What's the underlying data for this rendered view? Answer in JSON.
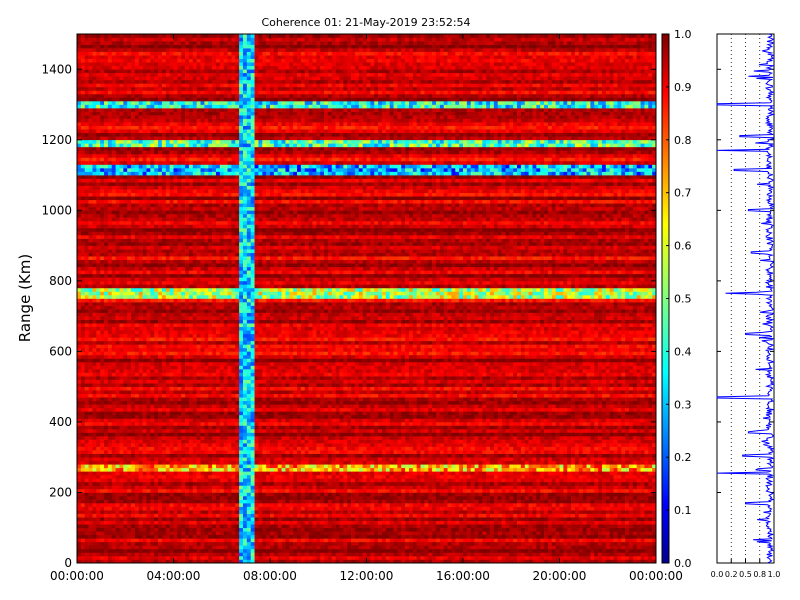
{
  "chart_data": [
    {
      "type": "heatmap",
      "title": "Coherence 01: 21-May-2019 23:52:54",
      "xlabel": "",
      "ylabel": "Range (Km)",
      "x_tick_labels": [
        "00:00:00",
        "04:00:00",
        "08:00:00",
        "12:00:00",
        "16:00:00",
        "20:00:00",
        "00:00:00"
      ],
      "x_tick_hours": [
        0,
        4,
        8,
        12,
        16,
        20,
        24
      ],
      "xlim_hours": [
        0,
        24
      ],
      "y_ticks": [
        0,
        200,
        400,
        600,
        800,
        1000,
        1200,
        1400
      ],
      "ylim": [
        0,
        1500
      ],
      "colorscale": "jet",
      "zlim": [
        0,
        1
      ],
      "colorbar_ticks": [
        "0.0",
        "0.1",
        "0.2",
        "0.3",
        "0.4",
        "0.5",
        "0.6",
        "0.7",
        "0.8",
        "0.9",
        "1.0"
      ],
      "background_coherence": [
        0.85,
        1.0
      ],
      "low_coherence_time_band_hours": [
        6.7,
        7.4
      ],
      "low_coherence_time_band_value": 0.35,
      "low_coherence_range_rows_km": [
        {
          "range": 1300,
          "value": 0.4
        },
        {
          "range": 1190,
          "value": 0.45
        },
        {
          "range": 1115,
          "value": 0.3
        },
        {
          "range": 765,
          "value": 0.55
        },
        {
          "range": 270,
          "value": 0.7
        }
      ]
    },
    {
      "type": "line",
      "title": "",
      "xlabel": "",
      "ylabel": "",
      "x_tick_labels": [
        "0.0",
        "0.2",
        "0.5",
        "0.8",
        "1.0"
      ],
      "x_ticks": [
        0.0,
        0.25,
        0.5,
        0.75,
        1.0
      ],
      "xlim": [
        0,
        1
      ],
      "ylim": [
        0,
        1500
      ],
      "grid": "vertical-dotted",
      "series": [
        {
          "color": "#0000ff",
          "dips": [
            {
              "range": 1380,
              "value": 0.55
            },
            {
              "range": 1300,
              "value": 0.0
            },
            {
              "range": 1210,
              "value": 0.4
            },
            {
              "range": 1170,
              "value": 0.0
            },
            {
              "range": 1115,
              "value": 0.3
            },
            {
              "range": 1000,
              "value": 0.55
            },
            {
              "range": 880,
              "value": 0.6
            },
            {
              "range": 765,
              "value": 0.15
            },
            {
              "range": 650,
              "value": 0.5
            },
            {
              "range": 470,
              "value": 0.0
            },
            {
              "range": 370,
              "value": 0.55
            },
            {
              "range": 305,
              "value": 0.45
            },
            {
              "range": 255,
              "value": 0.0
            },
            {
              "range": 170,
              "value": 0.5
            },
            {
              "range": 60,
              "value": 0.7
            }
          ]
        }
      ]
    }
  ],
  "colors": {
    "axis": "#000000",
    "line": "#0000ff"
  }
}
